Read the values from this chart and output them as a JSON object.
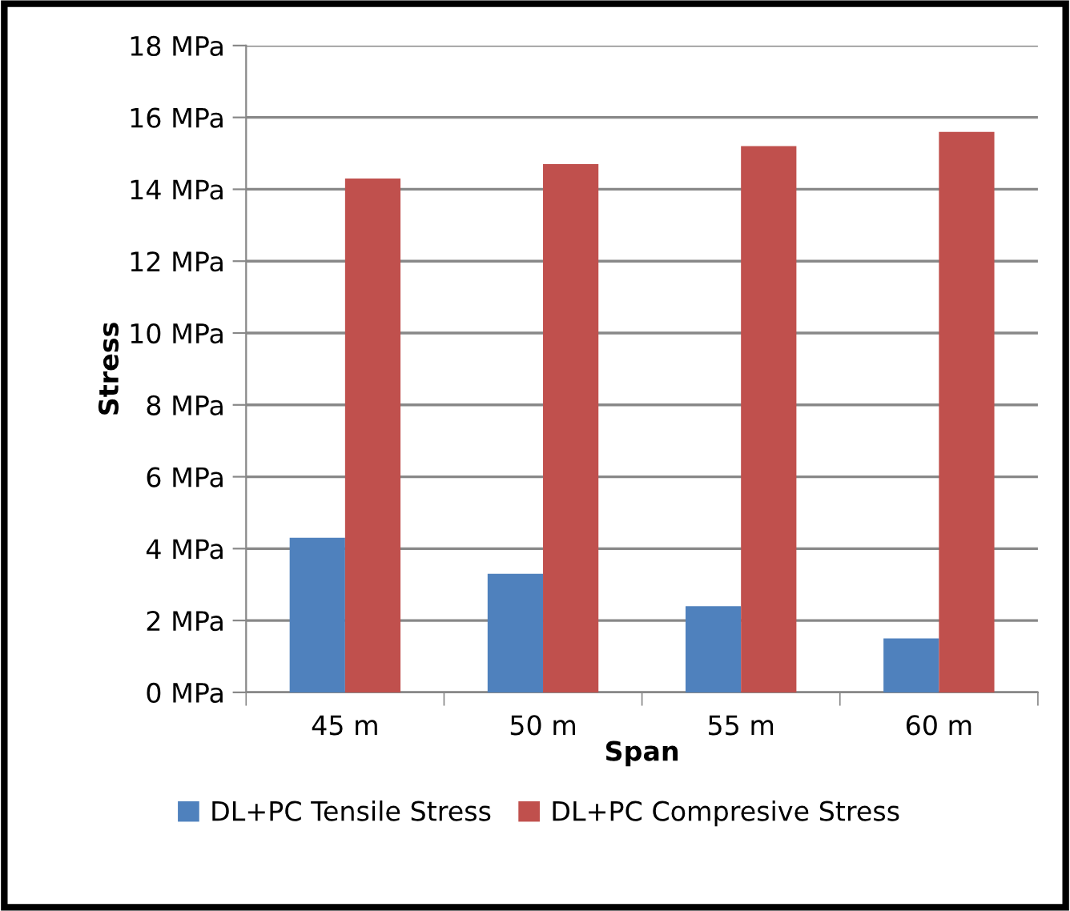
{
  "chart_data": {
    "type": "bar",
    "xlabel": "Span",
    "ylabel": "Stress",
    "categories": [
      "45 m",
      "50 m",
      "55 m",
      "60 m"
    ],
    "series": [
      {
        "name": "DL+PC Tensile Stress",
        "color": "#4f81bd",
        "values": [
          4.3,
          3.3,
          2.4,
          1.5
        ]
      },
      {
        "name": "DL+PC Compresive Stress",
        "color": "#c0504d",
        "values": [
          14.3,
          14.7,
          15.2,
          15.6
        ]
      }
    ],
    "ylim": [
      0,
      18
    ],
    "yticks": [
      {
        "value": 0,
        "label": "0 MPa"
      },
      {
        "value": 2,
        "label": "2 MPa"
      },
      {
        "value": 4,
        "label": "4 MPa"
      },
      {
        "value": 6,
        "label": "6 MPa"
      },
      {
        "value": 8,
        "label": "8 MPa"
      },
      {
        "value": 10,
        "label": "10 MPa"
      },
      {
        "value": 12,
        "label": "12 MPa"
      },
      {
        "value": 14,
        "label": "14 MPa"
      },
      {
        "value": 16,
        "label": "16 MPa"
      },
      {
        "value": 18,
        "label": "18 MPa"
      }
    ],
    "grid": "y",
    "legend": "bottom"
  }
}
